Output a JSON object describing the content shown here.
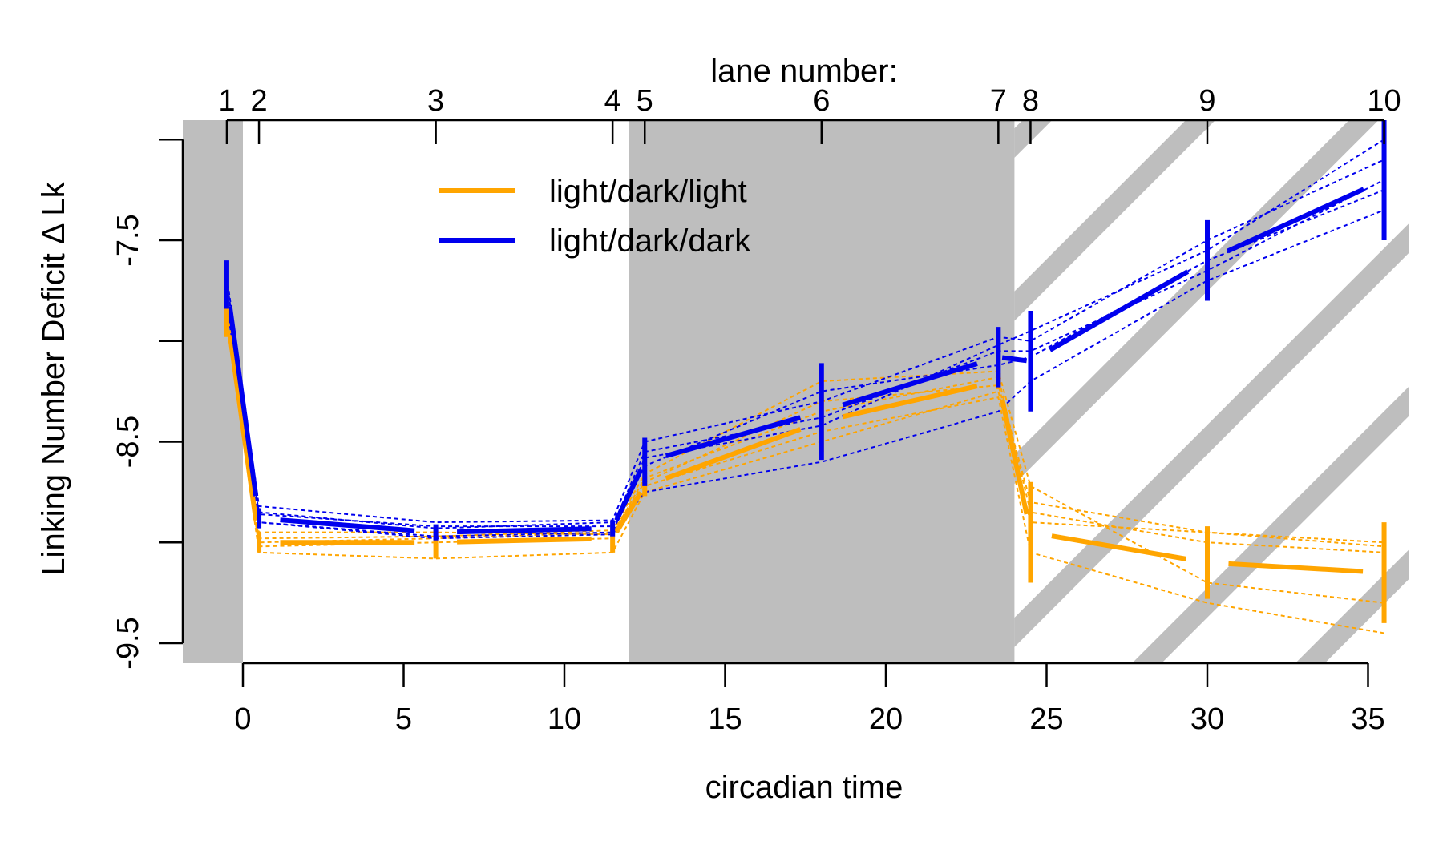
{
  "chart_data": {
    "type": "line",
    "xlabel": "circadian time",
    "ylabel": "Linking Number Deficit  Δ Lk",
    "top_axis_title": "lane number:",
    "xlim": [
      -1.9,
      36.4
    ],
    "ylim": [
      -9.7,
      -7.2
    ],
    "x_ticks": [
      0,
      5,
      10,
      15,
      20,
      25,
      30,
      35
    ],
    "y_ticks": [
      -9.5,
      -8.5,
      -7.5
    ],
    "y_tick_minor": [
      -9.5,
      -9.0,
      -8.5,
      -8.0,
      -7.5,
      -7.0
    ],
    "lanes": [
      {
        "label": "1",
        "x": -0.5
      },
      {
        "label": "2",
        "x": 0.5
      },
      {
        "label": "3",
        "x": 6
      },
      {
        "label": "4",
        "x": 11.5
      },
      {
        "label": "5",
        "x": 12.5
      },
      {
        "label": "6",
        "x": 18
      },
      {
        "label": "7",
        "x": 23.5
      },
      {
        "label": "8",
        "x": 24.5
      },
      {
        "label": "9",
        "x": 30
      },
      {
        "label": "10",
        "x": 35.5
      }
    ],
    "dark_periods": [
      [
        -1.9,
        0
      ],
      [
        12,
        24
      ]
    ],
    "hatched_period": [
      24,
      36.4
    ],
    "colors": {
      "light_dark_light": "#FFA500",
      "light_dark_dark": "#0000EE",
      "dark_shading": "#BEBEBE"
    },
    "legend": {
      "position": "top-center",
      "entries": [
        {
          "label": "light/dark/light",
          "color": "#FFA500"
        },
        {
          "label": "light/dark/dark",
          "color": "#0000EE"
        }
      ]
    },
    "series": [
      {
        "name": "light/dark/light",
        "color": "#FFA500",
        "x": [
          -0.5,
          0.5,
          6,
          11.5,
          12.5,
          18,
          23.5,
          24.5,
          30,
          35.5
        ],
        "mean": [
          -7.86,
          -9.0,
          -9.0,
          -8.98,
          -8.72,
          -8.4,
          -8.2,
          -8.95,
          -9.1,
          -9.15
        ],
        "err": [
          0.12,
          0.05,
          0.08,
          0.07,
          0.05,
          0.15,
          0.04,
          0.25,
          0.18,
          0.25
        ],
        "replicates": [
          [
            -7.8,
            -9.0,
            -8.98,
            -8.95,
            -8.7,
            -8.3,
            -8.22,
            -8.8,
            -8.95,
            -9.02
          ],
          [
            -7.9,
            -9.05,
            -9.08,
            -9.05,
            -8.75,
            -8.5,
            -8.25,
            -8.9,
            -8.95,
            -9.0
          ],
          [
            -7.88,
            -8.95,
            -8.95,
            -8.96,
            -8.68,
            -8.35,
            -8.18,
            -8.85,
            -9.0,
            -9.05
          ],
          [
            -7.92,
            -9.02,
            -9.0,
            -8.98,
            -8.72,
            -8.45,
            -8.28,
            -9.05,
            -9.3,
            -9.45
          ],
          [
            -7.84,
            -8.98,
            -8.97,
            -8.94,
            -8.66,
            -8.2,
            -8.15,
            -8.72,
            -9.2,
            -9.3
          ]
        ]
      },
      {
        "name": "light/dark/dark",
        "color": "#0000EE",
        "x": [
          -0.5,
          0.5,
          6,
          11.5,
          12.5,
          18,
          23.5,
          24.5,
          30,
          35.5
        ],
        "mean": [
          -7.72,
          -8.88,
          -8.95,
          -8.93,
          -8.6,
          -8.35,
          -8.08,
          -8.1,
          -7.6,
          -7.2
        ],
        "err": [
          0.12,
          0.05,
          0.04,
          0.04,
          0.12,
          0.24,
          0.15,
          0.25,
          0.2,
          0.3
        ],
        "replicates": [
          [
            -7.68,
            -8.82,
            -8.9,
            -8.89,
            -8.5,
            -8.3,
            -7.98,
            -8.0,
            -7.5,
            -7.1
          ],
          [
            -7.78,
            -8.9,
            -8.97,
            -8.95,
            -8.58,
            -8.42,
            -8.02,
            -7.95,
            -7.55,
            -7.0
          ],
          [
            -7.75,
            -8.85,
            -8.93,
            -8.9,
            -8.62,
            -8.25,
            -8.12,
            -8.08,
            -7.6,
            -7.25
          ],
          [
            -7.82,
            -8.9,
            -8.98,
            -8.96,
            -8.75,
            -8.6,
            -8.35,
            -8.2,
            -7.7,
            -7.35
          ],
          [
            -7.7,
            -8.86,
            -8.92,
            -8.92,
            -8.55,
            -8.38,
            -8.05,
            -8.05,
            -7.65,
            -7.2
          ]
        ]
      }
    ]
  }
}
